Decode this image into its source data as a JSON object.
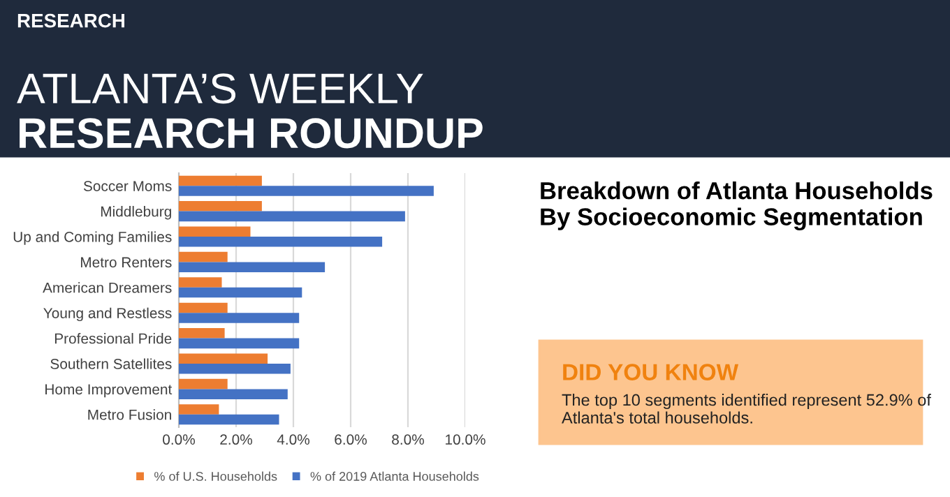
{
  "chart_data": {
    "type": "bar",
    "orientation": "horizontal",
    "title": "Breakdown of Atlanta Households By Socioeconomic Segmentation",
    "annotations": [
      "RESEARCH",
      "ATLANTA’S WEEKLY",
      "RESEARCH ROUNDUP",
      "DID YOU KNOW",
      "The top 10 segments identified represent 52.9% of Atlanta's total households."
    ],
    "categories": [
      "Soccer Moms",
      "Middleburg",
      "Up and Coming Families",
      "Metro Renters",
      "American Dreamers",
      "Young and Restless",
      "Professional Pride",
      "Southern Satellites",
      "Home Improvement",
      "Metro Fusion"
    ],
    "series": [
      {
        "name": "% of U.S. Households",
        "color": "#ed7d31",
        "values": [
          2.9,
          2.9,
          2.5,
          1.7,
          1.5,
          1.7,
          1.6,
          3.1,
          1.7,
          1.4
        ]
      },
      {
        "name": "% of 2019 Atlanta Households",
        "color": "#4472c4",
        "values": [
          8.9,
          7.9,
          7.1,
          5.1,
          4.3,
          4.2,
          4.2,
          3.9,
          3.8,
          3.5
        ]
      }
    ],
    "xlim": [
      0,
      10
    ],
    "xticks": [
      {
        "value": 0,
        "label": "0.0%"
      },
      {
        "value": 2,
        "label": "2.0%"
      },
      {
        "value": 4,
        "label": "4.0%"
      },
      {
        "value": 6,
        "label": "6.0%"
      },
      {
        "value": 8,
        "label": "8.0%"
      },
      {
        "value": 10,
        "label": "10.0%"
      }
    ],
    "grid": "x",
    "legend": "bottom"
  }
}
